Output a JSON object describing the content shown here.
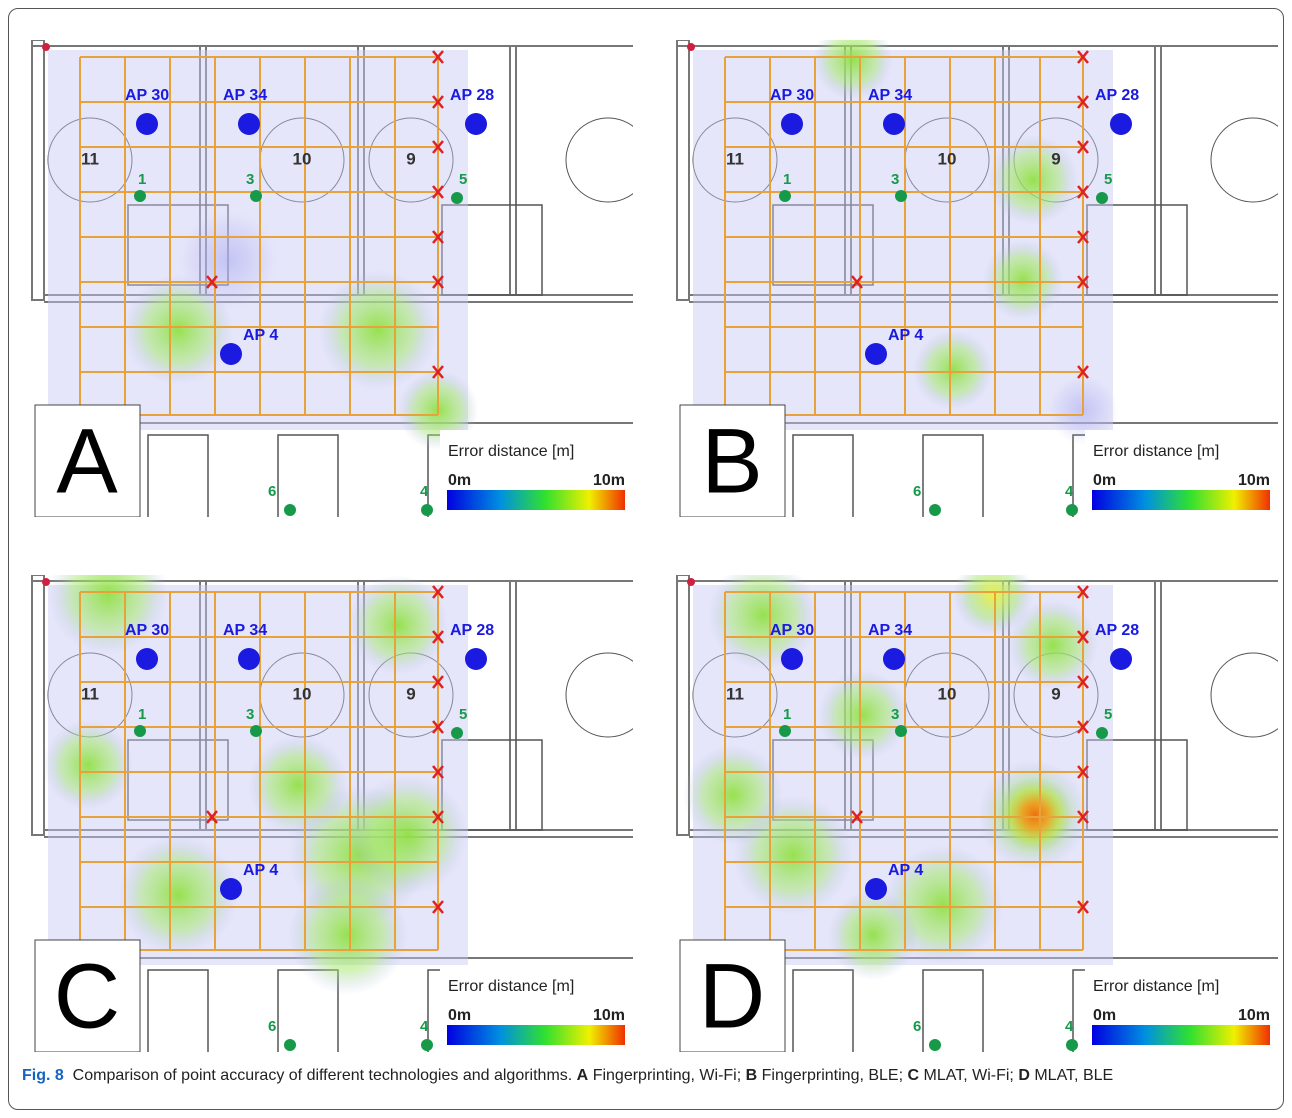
{
  "figure": {
    "panels": [
      {
        "letter": "A",
        "legend": {
          "title": "Error distance [m]",
          "min": "0m",
          "max": "10m"
        },
        "aps": [
          "AP 30",
          "AP 34",
          "AP 28",
          "AP 4"
        ],
        "rooms": [
          "11",
          "10",
          "9"
        ],
        "points": [
          "1",
          "3",
          "5",
          "6",
          "4"
        ]
      },
      {
        "letter": "B",
        "legend": {
          "title": "Error distance [m]",
          "min": "0m",
          "max": "10m"
        },
        "aps": [
          "AP 30",
          "AP 34",
          "AP 28",
          "AP 4"
        ],
        "rooms": [
          "11",
          "10",
          "9"
        ],
        "points": [
          "1",
          "3",
          "5",
          "6",
          "4"
        ]
      },
      {
        "letter": "C",
        "legend": {
          "title": "Error distance [m]",
          "min": "0m",
          "max": "10m"
        },
        "aps": [
          "AP 30",
          "AP 34",
          "AP 28",
          "AP 4"
        ],
        "rooms": [
          "11",
          "10",
          "9"
        ],
        "points": [
          "1",
          "3",
          "5",
          "6",
          "4"
        ]
      },
      {
        "letter": "D",
        "legend": {
          "title": "Error distance [m]",
          "min": "0m",
          "max": "10m"
        },
        "aps": [
          "AP 30",
          "AP 34",
          "AP 28",
          "AP 4"
        ],
        "rooms": [
          "11",
          "10",
          "9"
        ],
        "points": [
          "1",
          "3",
          "5",
          "6",
          "4"
        ]
      }
    ],
    "caption": {
      "label": "Fig. 8",
      "text": "Comparison of point accuracy of different technologies and algorithms.",
      "items": [
        {
          "letter": "A",
          "text": "Fingerprinting, Wi-Fi;"
        },
        {
          "letter": "B",
          "text": "Fingerprinting, BLE;"
        },
        {
          "letter": "C",
          "text": "MLAT, Wi-Fi;"
        },
        {
          "letter": "D",
          "text": "MLAT, BLE"
        }
      ]
    }
  }
}
